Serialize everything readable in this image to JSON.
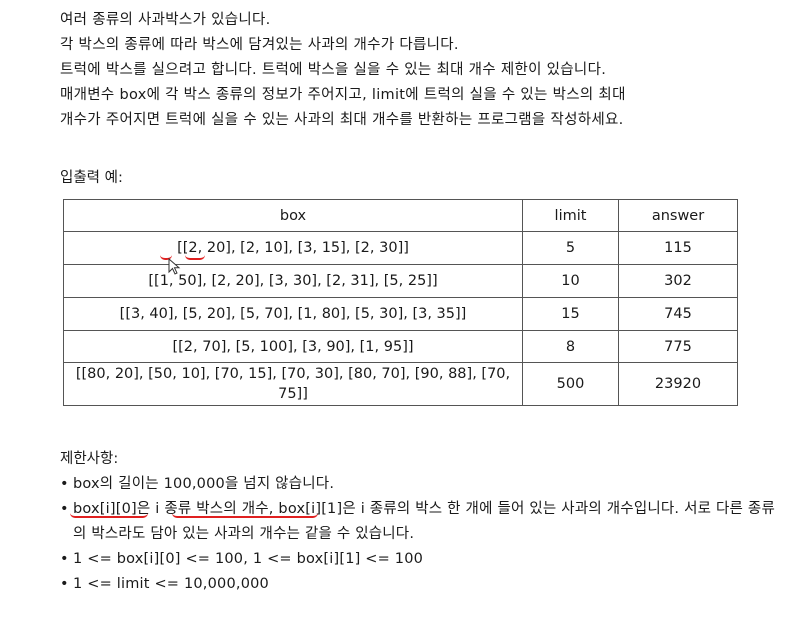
{
  "intro": [
    "여러 종류의 사과박스가 있습니다.",
    "각 박스의 종류에 따라 박스에 담겨있는 사과의 개수가 다릅니다.",
    "트럭에 박스를 실으려고 합니다. 트럭에 박스을 실을 수 있는 최대 개수 제한이 있습니다.",
    "매개변수 box에 각 박스 종류의 정보가 주어지고, limit에 트럭의 실을 수 있는 박스의 최대",
    "개수가 주어지면 트럭에 실을 수 있는 사과의 최대 개수를 반환하는 프로그램을 작성하세요."
  ],
  "io_label": "입출력 예:",
  "table": {
    "headers": [
      "box",
      "limit",
      "answer"
    ],
    "rows": [
      [
        "[[2, 20], [2, 10], [3, 15], [2, 30]]",
        "5",
        "115"
      ],
      [
        "[[1, 50], [2, 20], [3, 30], [2, 31], [5, 25]]",
        "10",
        "302"
      ],
      [
        "[[3, 40], [5, 20], [5, 70], [1, 80], [5, 30], [3, 35]]",
        "15",
        "745"
      ],
      [
        "[[2, 70], [5, 100], [3, 90], [1, 95]]",
        "8",
        "775"
      ],
      [
        "[[80, 20], [50, 10], [70, 15], [70, 30], [80, 70], [90, 88], [70, 75]]",
        "500",
        "23920"
      ]
    ]
  },
  "constraints_title": "제한사항:",
  "constraints": [
    "box의 길이는 100,000을 넘지 않습니다.",
    "box[i][0]은 i 종류 박스의 개수, box[i][1]은 i 종류의 박스 한 개에 들어 있는 사과의 개수입니다. 서로 다른 종류의 박스라도 담아 있는 사과의 개수는 같을 수 있습니다.",
    "1 <= box[i][0] <= 100, 1 <= box[i][1] <= 100",
    "1 <= limit <= 10,000,000"
  ],
  "bullet": "•",
  "colors": {
    "text": "#1a1a1a",
    "border": "#555555",
    "annotation_red": "#e02020"
  },
  "icons": [
    "mouse-cursor-icon"
  ]
}
